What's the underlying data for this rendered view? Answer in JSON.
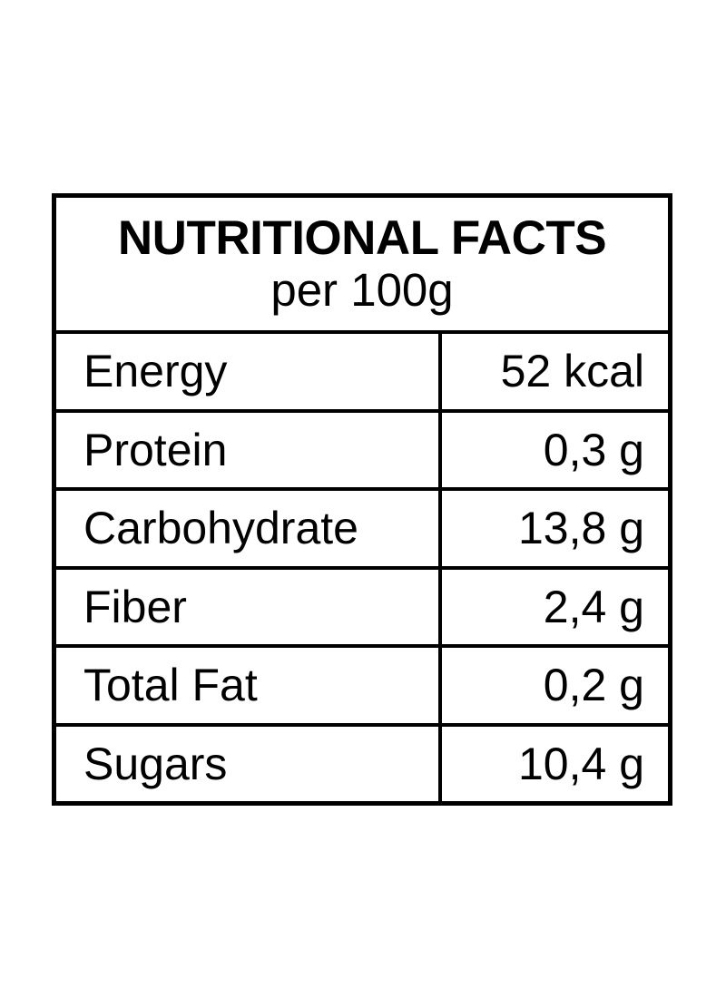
{
  "table": {
    "title": "NUTRITIONAL FACTS",
    "subtitle": "per 100g",
    "rows": [
      {
        "label": "Energy",
        "value": "52 kcal"
      },
      {
        "label": "Protein",
        "value": "0,3 g"
      },
      {
        "label": "Carbohydrate",
        "value": "13,8 g"
      },
      {
        "label": "Fiber",
        "value": "2,4 g"
      },
      {
        "label": "Total Fat",
        "value": "0,2 g"
      },
      {
        "label": "Sugars",
        "value": "10,4 g"
      }
    ],
    "colors": {
      "border": "#000000",
      "text": "#000000",
      "background": "#ffffff"
    }
  }
}
